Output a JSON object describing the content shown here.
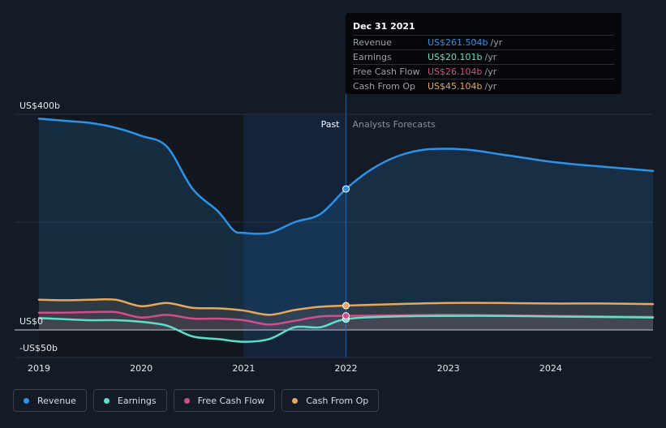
{
  "chart_data": {
    "type": "line",
    "y_unit_label_top": "US$400b",
    "y_unit_label_zero": "US$0",
    "y_unit_label_bottom": "-US$50b",
    "ylim": [
      -50,
      400
    ],
    "xlim": [
      2019.0,
      2025.0
    ],
    "x_ticks": [
      {
        "value": 2019,
        "label": "2019"
      },
      {
        "value": 2020,
        "label": "2020"
      },
      {
        "value": 2021,
        "label": "2021"
      },
      {
        "value": 2022,
        "label": "2022"
      },
      {
        "value": 2023,
        "label": "2023"
      },
      {
        "value": 2024,
        "label": "2024"
      }
    ],
    "divider_x": 2022.0,
    "highlight_start_x": 2021.0,
    "past_label": "Past",
    "forecast_label": "Analysts Forecasts",
    "grid": true,
    "series": [
      {
        "name": "Revenue",
        "color": "#2e93e6",
        "points": [
          [
            2019.0,
            392
          ],
          [
            2019.25,
            388
          ],
          [
            2019.5,
            384
          ],
          [
            2019.75,
            375
          ],
          [
            2020.0,
            360
          ],
          [
            2020.25,
            340
          ],
          [
            2020.5,
            262
          ],
          [
            2020.75,
            220
          ],
          [
            2020.9,
            185
          ],
          [
            2021.0,
            180
          ],
          [
            2021.25,
            180
          ],
          [
            2021.5,
            200
          ],
          [
            2021.75,
            215
          ],
          [
            2022.0,
            261.5
          ],
          [
            2022.25,
            298
          ],
          [
            2022.5,
            322
          ],
          [
            2022.75,
            334
          ],
          [
            2023.0,
            336
          ],
          [
            2023.25,
            333
          ],
          [
            2023.5,
            326
          ],
          [
            2023.75,
            319
          ],
          [
            2024.0,
            312
          ],
          [
            2024.25,
            307
          ],
          [
            2024.5,
            303
          ],
          [
            2024.75,
            299
          ],
          [
            2025.0,
            295
          ]
        ]
      },
      {
        "name": "Earnings",
        "color": "#5de0c9",
        "points": [
          [
            2019.0,
            22
          ],
          [
            2019.25,
            20
          ],
          [
            2019.5,
            18
          ],
          [
            2019.75,
            18
          ],
          [
            2020.0,
            15
          ],
          [
            2020.25,
            8
          ],
          [
            2020.5,
            -12
          ],
          [
            2020.75,
            -17
          ],
          [
            2021.0,
            -22
          ],
          [
            2021.25,
            -17
          ],
          [
            2021.5,
            5
          ],
          [
            2021.75,
            5
          ],
          [
            2022.0,
            20.1
          ],
          [
            2022.5,
            25
          ],
          [
            2023.0,
            26
          ],
          [
            2023.5,
            26
          ],
          [
            2024.0,
            25
          ],
          [
            2024.5,
            24
          ],
          [
            2025.0,
            23
          ]
        ]
      },
      {
        "name": "Free Cash Flow",
        "color": "#d14e8c",
        "points": [
          [
            2019.0,
            32
          ],
          [
            2019.25,
            32
          ],
          [
            2019.5,
            33
          ],
          [
            2019.75,
            33
          ],
          [
            2020.0,
            23
          ],
          [
            2020.25,
            28
          ],
          [
            2020.5,
            21
          ],
          [
            2020.75,
            21
          ],
          [
            2021.0,
            18
          ],
          [
            2021.25,
            10
          ],
          [
            2021.5,
            17
          ],
          [
            2021.75,
            25
          ],
          [
            2022.0,
            26.1
          ],
          [
            2022.5,
            27
          ],
          [
            2023.0,
            28
          ],
          [
            2023.5,
            27
          ],
          [
            2024.0,
            26
          ],
          [
            2024.5,
            25
          ],
          [
            2025.0,
            24
          ]
        ]
      },
      {
        "name": "Cash From Op",
        "color": "#e8a75a",
        "points": [
          [
            2019.0,
            56
          ],
          [
            2019.25,
            55
          ],
          [
            2019.5,
            56
          ],
          [
            2019.75,
            56
          ],
          [
            2020.0,
            44
          ],
          [
            2020.25,
            50
          ],
          [
            2020.5,
            41
          ],
          [
            2020.75,
            40
          ],
          [
            2021.0,
            36
          ],
          [
            2021.25,
            28
          ],
          [
            2021.5,
            37
          ],
          [
            2021.75,
            43
          ],
          [
            2022.0,
            45.1
          ],
          [
            2022.5,
            48
          ],
          [
            2023.0,
            50
          ],
          [
            2023.5,
            50
          ],
          [
            2024.0,
            49
          ],
          [
            2024.5,
            49
          ],
          [
            2025.0,
            48
          ]
        ]
      }
    ],
    "tooltip": {
      "date": "Dec 31 2021",
      "x": 2022.0,
      "rows": [
        {
          "label": "Revenue",
          "value": "US$261.504b",
          "unit": "/yr",
          "color": "#2e93e6"
        },
        {
          "label": "Earnings",
          "value": "US$20.101b",
          "unit": "/yr",
          "color": "#5de0c9"
        },
        {
          "label": "Free Cash Flow",
          "value": "US$26.104b",
          "unit": "/yr",
          "color": "#d14e8c"
        },
        {
          "label": "Cash From Op",
          "value": "US$45.104b",
          "unit": "/yr",
          "color": "#e8a75a"
        }
      ]
    }
  },
  "legend": [
    {
      "label": "Revenue",
      "color": "#2e93e6"
    },
    {
      "label": "Earnings",
      "color": "#5de0c9"
    },
    {
      "label": "Free Cash Flow",
      "color": "#d14e8c"
    },
    {
      "label": "Cash From Op",
      "color": "#e8a75a"
    }
  ]
}
